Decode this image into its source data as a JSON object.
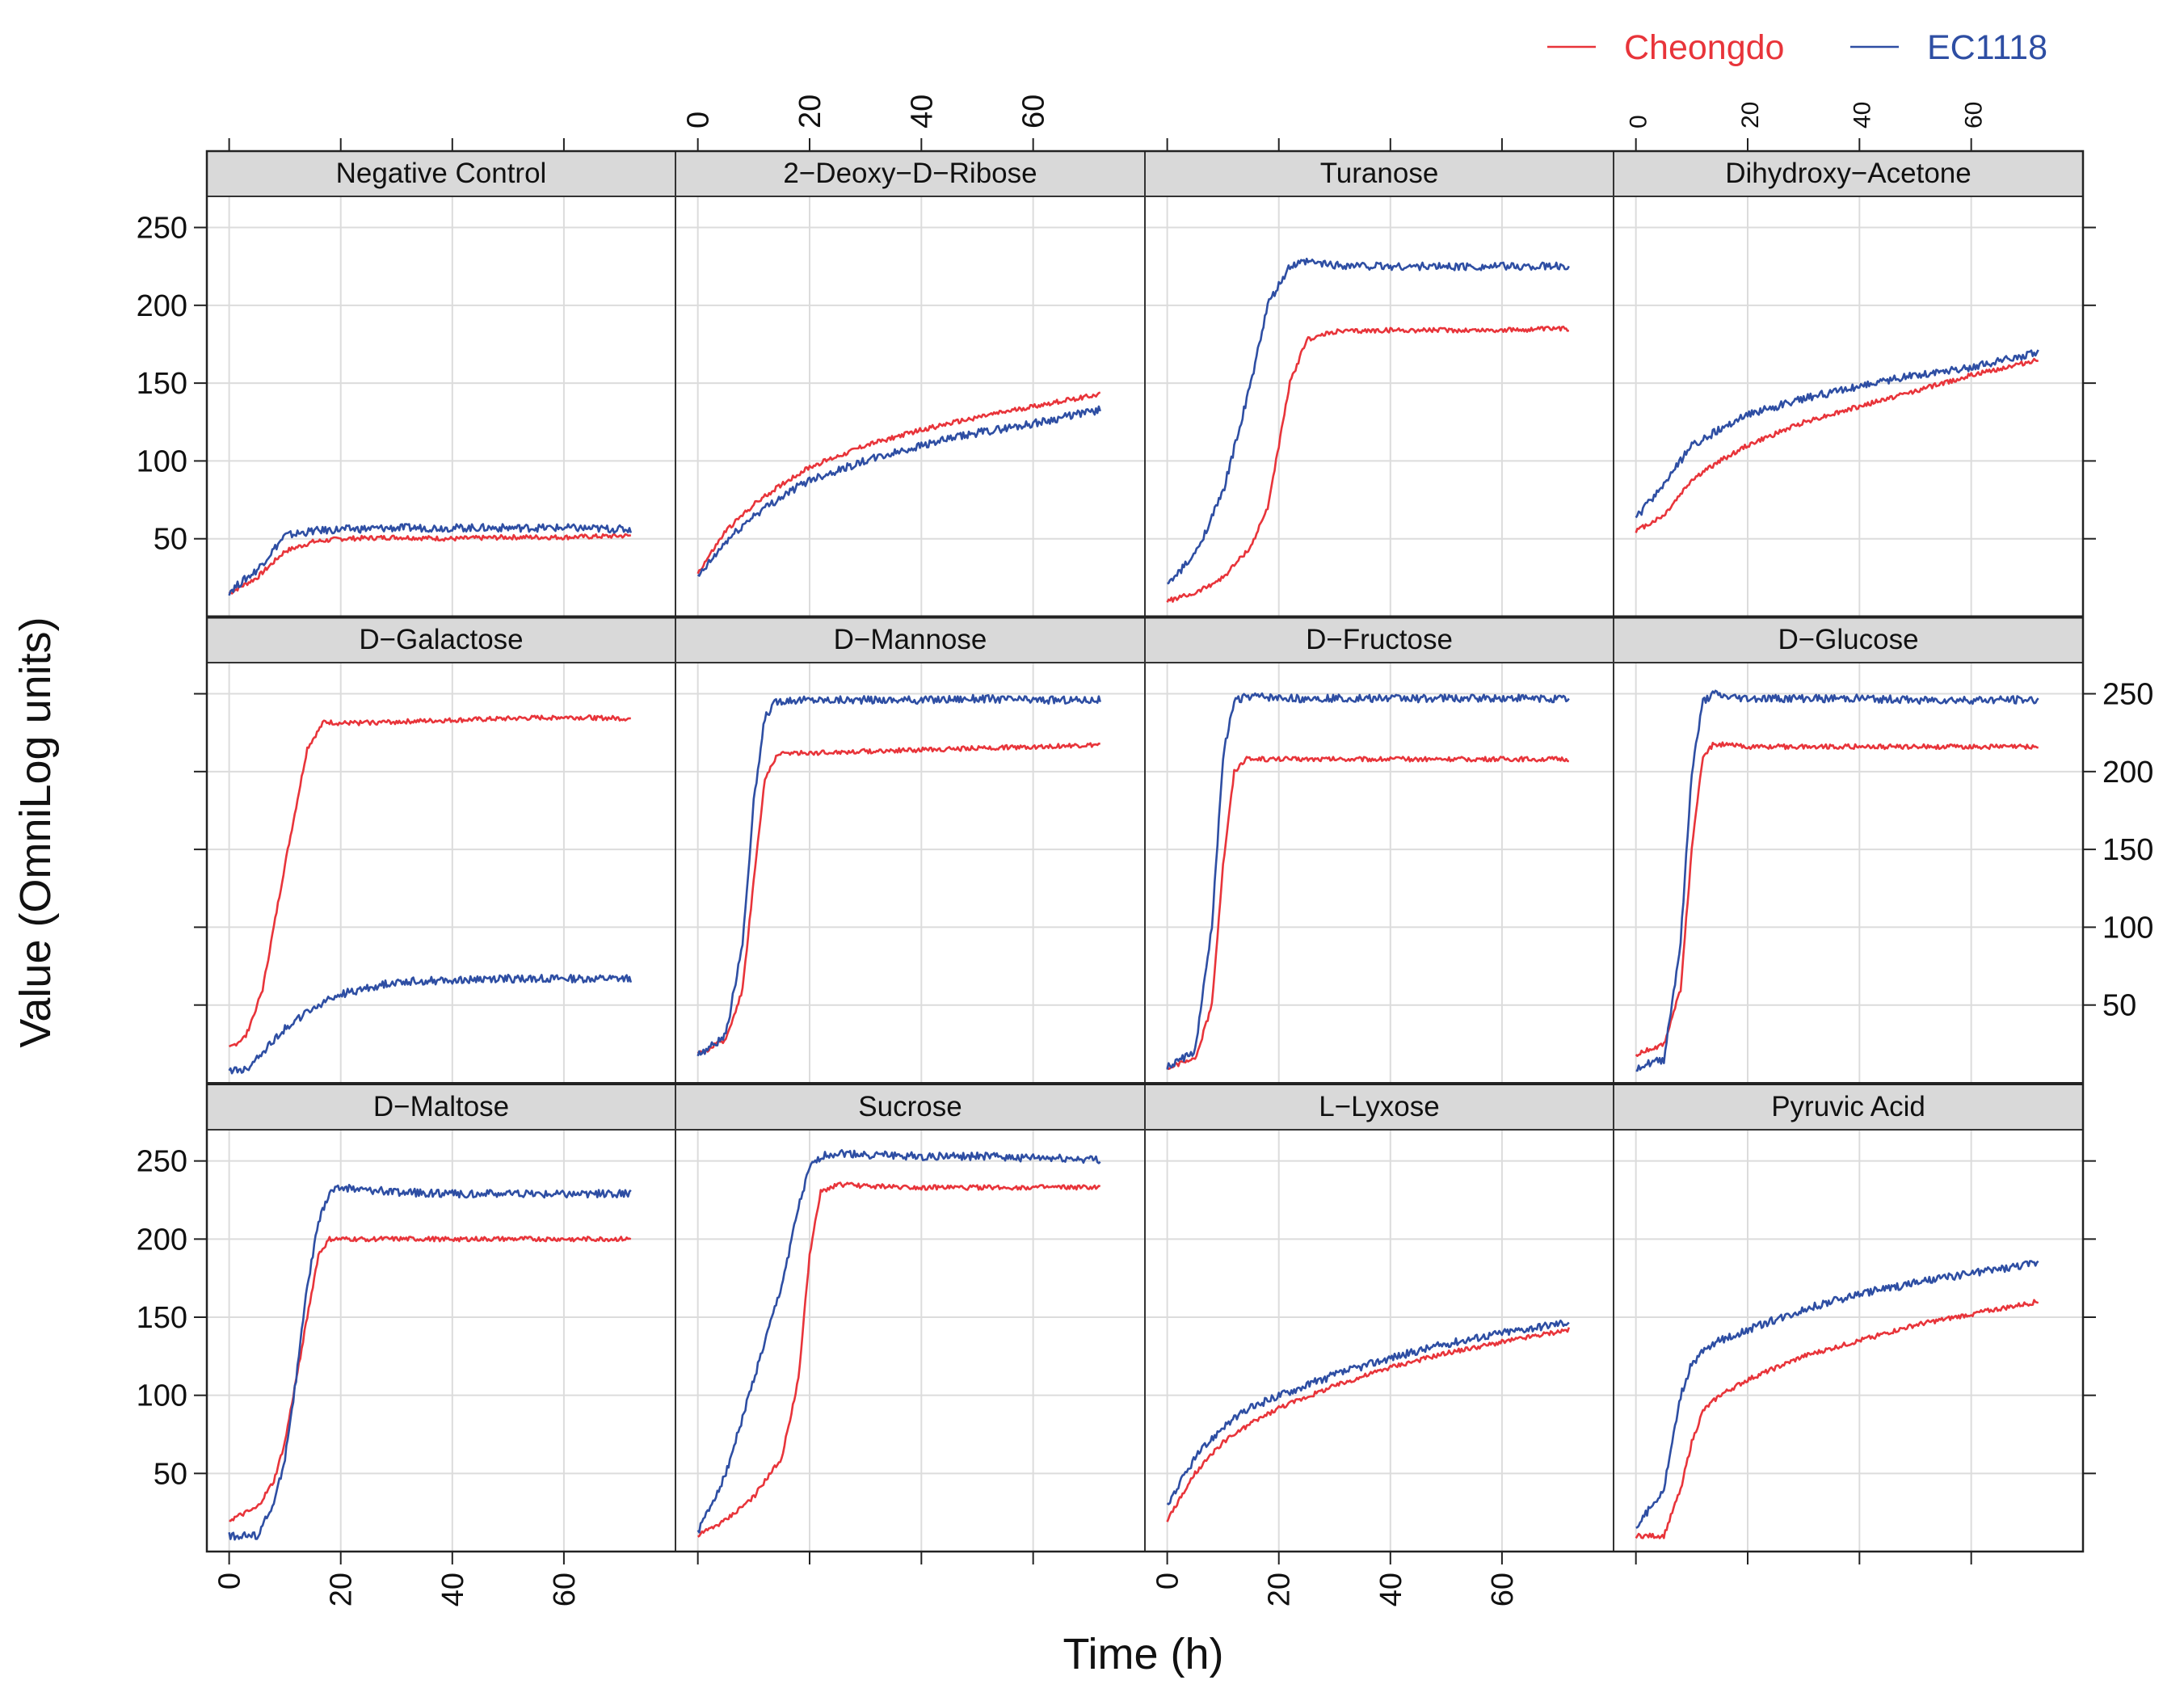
{
  "chart_data": {
    "type": "line",
    "xlabel": "Time (h)",
    "ylabel": "Value (OmniLog units)",
    "xlim": [
      -4,
      80
    ],
    "ylim": [
      0,
      270
    ],
    "x_ticks": [
      0,
      20,
      40,
      60
    ],
    "y_ticks": [
      50,
      100,
      150,
      200,
      250
    ],
    "grid": true,
    "legend_position": "top-right",
    "series_meta": [
      {
        "name": "Cheongdo",
        "color": "#e8343a"
      },
      {
        "name": "EC1118",
        "color": "#2e4ea3"
      }
    ],
    "panels": [
      {
        "title": "Negative  Control",
        "x": [
          0,
          5,
          10,
          15,
          20,
          30,
          40,
          50,
          60,
          72
        ],
        "series": [
          {
            "name": "Cheongdo",
            "values": [
              15,
              25,
              42,
              48,
              50,
              51,
              50,
              51,
              51,
              52
            ]
          },
          {
            "name": "EC1118",
            "values": [
              16,
              30,
              52,
              55,
              56,
              57,
              57,
              57,
              57,
              56
            ]
          }
        ]
      },
      {
        "title": "2−Deoxy−D−Ribose",
        "x": [
          0,
          5,
          10,
          15,
          20,
          30,
          40,
          50,
          60,
          72
        ],
        "series": [
          {
            "name": "Cheongdo",
            "values": [
              28,
              55,
              72,
              85,
              96,
              110,
              120,
              128,
              135,
              143
            ]
          },
          {
            "name": "EC1118",
            "values": [
              25,
              48,
              65,
              77,
              88,
              100,
              110,
              118,
              124,
              133
            ]
          }
        ]
      },
      {
        "title": "Turanose",
        "x": [
          0,
          5,
          10,
          15,
          18,
          22,
          25,
          30,
          40,
          50,
          60,
          72
        ],
        "series": [
          {
            "name": "Cheongdo",
            "values": [
              10,
              15,
              25,
              45,
              70,
              150,
              178,
              183,
              184,
              184,
              184,
              185
            ]
          },
          {
            "name": "EC1118",
            "values": [
              20,
              40,
              80,
              150,
              200,
              225,
              228,
              226,
              225,
              225,
              225,
              225
            ]
          }
        ]
      },
      {
        "title": "Dihydroxy−Acetone",
        "x": [
          0,
          5,
          10,
          15,
          20,
          30,
          40,
          50,
          60,
          72
        ],
        "series": [
          {
            "name": "Cheongdo",
            "values": [
              55,
              65,
              88,
              100,
              110,
              125,
              135,
              145,
              155,
              165
            ]
          },
          {
            "name": "EC1118",
            "values": [
              63,
              85,
              110,
              120,
              130,
              140,
              148,
              155,
              160,
              170
            ]
          }
        ]
      },
      {
        "title": "D−Galactose",
        "x": [
          0,
          3,
          6,
          10,
          14,
          17,
          20,
          30,
          40,
          50,
          60,
          72
        ],
        "series": [
          {
            "name": "Cheongdo",
            "values": [
              22,
              30,
              60,
              140,
              215,
              232,
              231,
              232,
              233,
              234,
              235,
              234
            ]
          },
          {
            "name": "EC1118",
            "values": [
              8,
              8,
              20,
              35,
              45,
              52,
              57,
              65,
              66,
              67,
              67,
              67
            ]
          }
        ]
      },
      {
        "title": "D−Mannose",
        "x": [
          0,
          5,
          8,
          10,
          12,
          14,
          16,
          20,
          30,
          40,
          50,
          60,
          72
        ],
        "series": [
          {
            "name": "Cheongdo",
            "values": [
              18,
              28,
              60,
              130,
              195,
              210,
              212,
              212,
              213,
              214,
              215,
              216,
              217
            ]
          },
          {
            "name": "EC1118",
            "values": [
              18,
              30,
              90,
              180,
              235,
              245,
              246,
              246,
              246,
              246,
              247,
              246,
              246
            ]
          }
        ]
      },
      {
        "title": "D−Fructose",
        "x": [
          0,
          5,
          8,
          10,
          12,
          14,
          16,
          20,
          30,
          40,
          50,
          60,
          72
        ],
        "series": [
          {
            "name": "Cheongdo",
            "values": [
              10,
              15,
              50,
              140,
              200,
              208,
              208,
              208,
              208,
              208,
              208,
              208,
              208
            ]
          },
          {
            "name": "EC1118",
            "values": [
              10,
              20,
              100,
              210,
              245,
              248,
              248,
              247,
              247,
              247,
              247,
              247,
              247
            ]
          }
        ]
      },
      {
        "title": "D−Glucose",
        "x": [
          0,
          5,
          8,
          10,
          12,
          14,
          16,
          20,
          30,
          40,
          50,
          60,
          72
        ],
        "series": [
          {
            "name": "Cheongdo",
            "values": [
              18,
              25,
              60,
              150,
              210,
              218,
              217,
              216,
              216,
              216,
              216,
              216,
              216
            ]
          },
          {
            "name": "EC1118",
            "values": [
              10,
              15,
              90,
              200,
              245,
              250,
              248,
              247,
              247,
              247,
              246,
              246,
              246
            ]
          }
        ]
      },
      {
        "title": "D−Maltose",
        "x": [
          0,
          5,
          8,
          10,
          12,
          14,
          16,
          18,
          20,
          30,
          40,
          50,
          60,
          72
        ],
        "series": [
          {
            "name": "Cheongdo",
            "values": [
              20,
              28,
              45,
              70,
              110,
              150,
              190,
              200,
              200,
              200,
              200,
              200,
              200,
              200
            ]
          },
          {
            "name": "EC1118",
            "values": [
              10,
              10,
              30,
              60,
              110,
              170,
              210,
              230,
              233,
              230,
              229,
              229,
              229,
              229
            ]
          }
        ]
      },
      {
        "title": "Sucrose",
        "x": [
          0,
          5,
          10,
          15,
          18,
          20,
          22,
          25,
          30,
          40,
          50,
          60,
          72
        ],
        "series": [
          {
            "name": "Cheongdo",
            "values": [
              10,
              20,
              35,
              60,
              110,
              190,
              230,
              235,
              234,
              233,
              233,
              233,
              233
            ]
          },
          {
            "name": "EC1118",
            "values": [
              12,
              50,
              110,
              170,
              220,
              245,
              253,
              255,
              254,
              253,
              253,
              252,
              251
            ]
          }
        ]
      },
      {
        "title": "L−Lyxose",
        "x": [
          0,
          5,
          10,
          15,
          20,
          30,
          40,
          50,
          60,
          72
        ],
        "series": [
          {
            "name": "Cheongdo",
            "values": [
              20,
              50,
              70,
              82,
              92,
              106,
              118,
              127,
              134,
              142
            ]
          },
          {
            "name": "EC1118",
            "values": [
              30,
              60,
              80,
              92,
              100,
              113,
              124,
              133,
              140,
              147
            ]
          }
        ]
      },
      {
        "title": "Pyruvic Acid",
        "x": [
          0,
          5,
          8,
          10,
          12,
          15,
          20,
          30,
          40,
          50,
          60,
          72
        ],
        "series": [
          {
            "name": "Cheongdo",
            "values": [
              10,
              10,
              40,
              70,
              90,
              100,
              110,
              125,
              135,
              145,
              152,
              160
            ]
          },
          {
            "name": "EC1118",
            "values": [
              15,
              40,
              100,
              120,
              128,
              135,
              142,
              155,
              165,
              172,
              178,
              185
            ]
          }
        ]
      }
    ]
  }
}
